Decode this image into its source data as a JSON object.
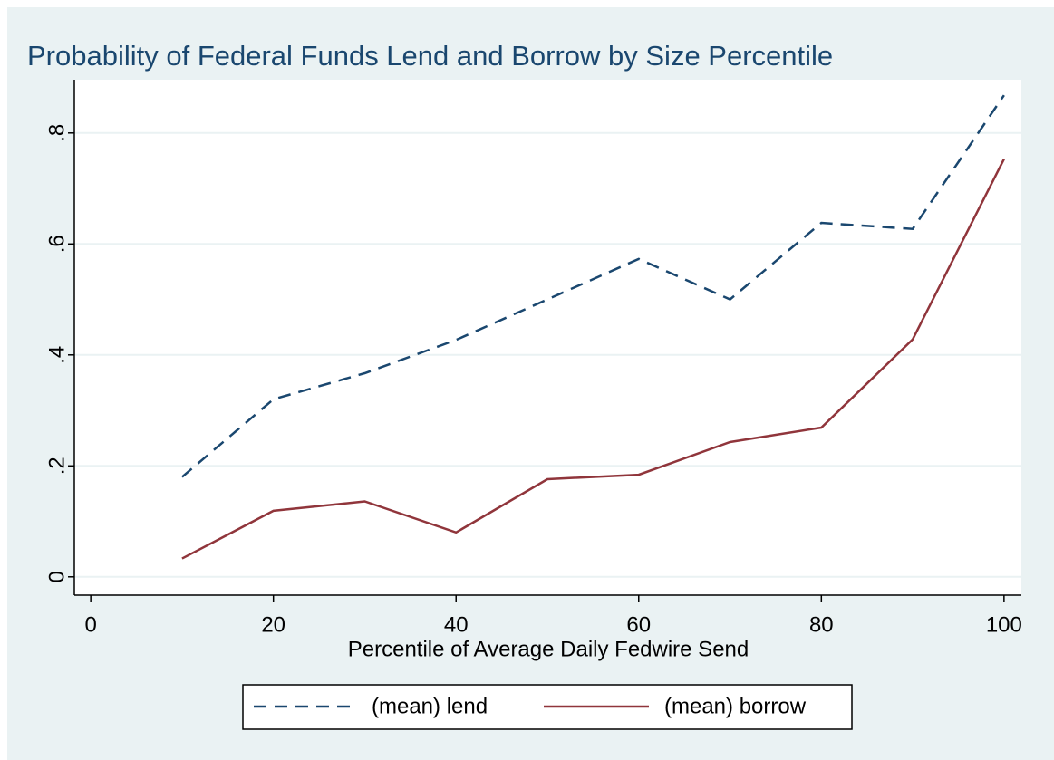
{
  "chart_data": {
    "type": "line",
    "title": "Probability of Federal Funds Lend and Borrow by Size Percentile",
    "x_label": "Percentile of Average Daily Fedwire Send",
    "x": [
      10,
      20,
      30,
      40,
      50,
      60,
      70,
      80,
      90,
      100
    ],
    "series": [
      {
        "name": "(mean) lend",
        "color": "#1a476f",
        "dash": true,
        "values": [
          0.18,
          0.32,
          0.367,
          0.427,
          0.5,
          0.573,
          0.5,
          0.638,
          0.627,
          0.868
        ]
      },
      {
        "name": "(mean) borrow",
        "color": "#90353b",
        "dash": false,
        "values": [
          0.033,
          0.119,
          0.136,
          0.08,
          0.176,
          0.184,
          0.243,
          0.269,
          0.428,
          0.753
        ]
      }
    ],
    "xlim": [
      -1.8,
      101.9
    ],
    "xticks": [
      0,
      20,
      40,
      60,
      80,
      100
    ],
    "ylim": [
      -0.033,
      0.896
    ],
    "yticks": [
      0,
      {
        "value": 0.2,
        "label": ".2"
      },
      {
        "value": 0.4,
        "label": ".4"
      },
      {
        "value": 0.6,
        "label": ".6"
      },
      {
        "value": 0.8,
        "label": ".8"
      }
    ],
    "grid": true,
    "legend": "bottom"
  }
}
